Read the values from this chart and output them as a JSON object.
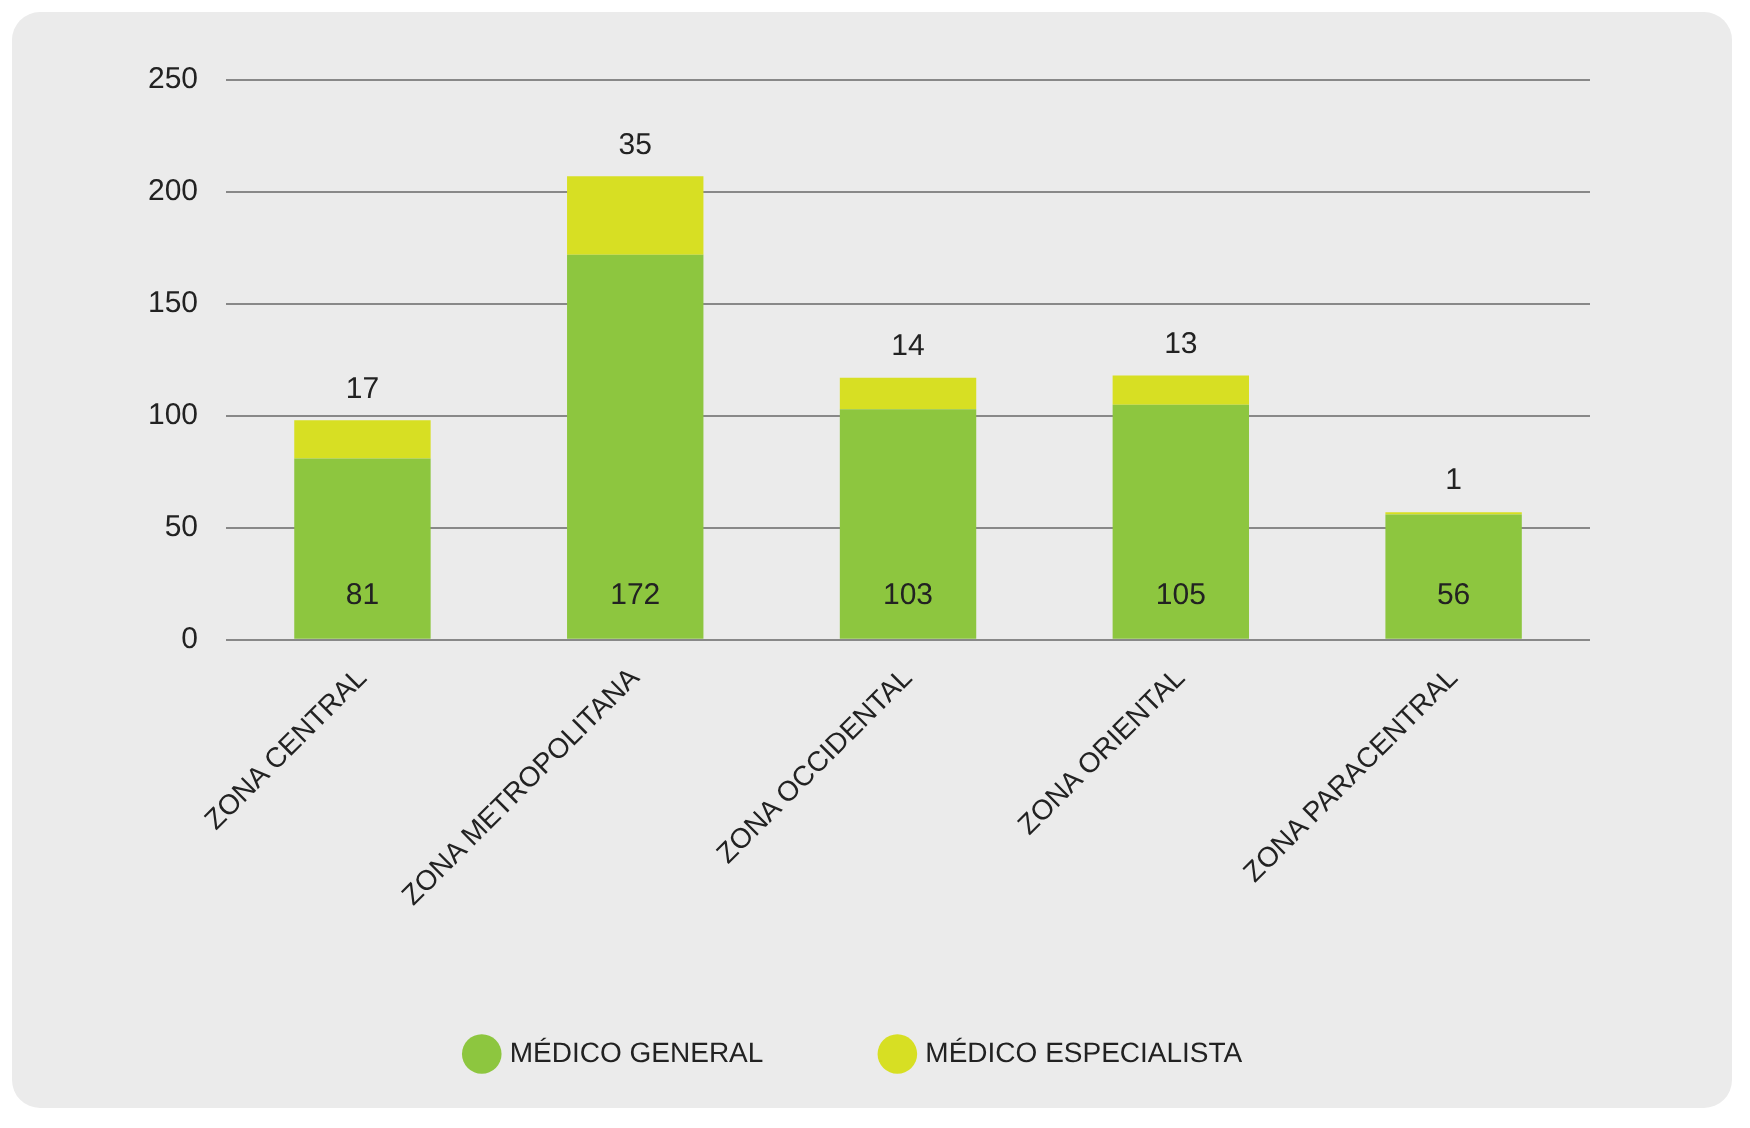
{
  "chart_data": {
    "type": "bar",
    "stacked": true,
    "categories": [
      "ZONA CENTRAL",
      "ZONA METROPOLITANA",
      "ZONA OCCIDENTAL",
      "ZONA ORIENTAL",
      "ZONA PARACENTRAL"
    ],
    "series": [
      {
        "name": "MÉDICO GENERAL",
        "color": "#8dc63f",
        "values": [
          81,
          172,
          103,
          105,
          56
        ]
      },
      {
        "name": "MÉDICO ESPECIALISTA",
        "color": "#d7df23",
        "values": [
          17,
          35,
          14,
          13,
          1
        ]
      }
    ],
    "ylim": [
      0,
      250
    ],
    "yticks": [
      0,
      50,
      100,
      150,
      200,
      250
    ],
    "grid": "y",
    "legend": "bottom",
    "data_labels": true
  }
}
